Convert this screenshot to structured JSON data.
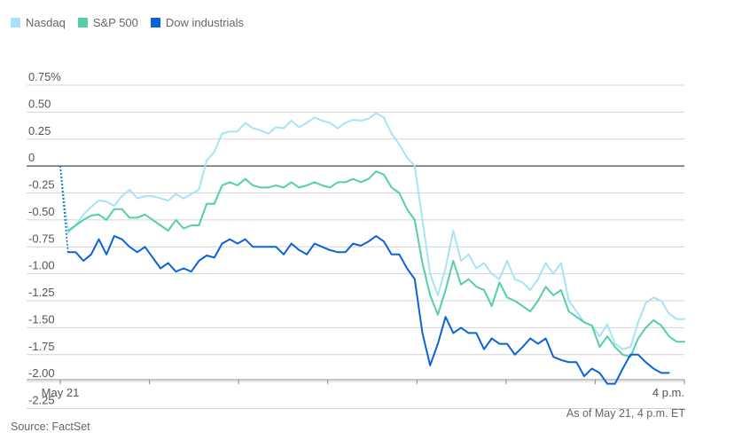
{
  "chart_data": {
    "type": "line",
    "series": [
      {
        "name": "Nasdaq",
        "color": "#a6e3f7",
        "values": [
          0,
          -0.62,
          -0.55,
          -0.45,
          -0.38,
          -0.32,
          -0.33,
          -0.37,
          -0.28,
          -0.22,
          -0.3,
          -0.28,
          -0.28,
          -0.3,
          -0.32,
          -0.26,
          -0.3,
          -0.26,
          -0.22,
          0.05,
          0.13,
          0.3,
          0.32,
          0.32,
          0.4,
          0.35,
          0.33,
          0.3,
          0.36,
          0.35,
          0.42,
          0.36,
          0.4,
          0.45,
          0.42,
          0.4,
          0.35,
          0.4,
          0.43,
          0.42,
          0.44,
          0.49,
          0.45,
          0.3,
          0.2,
          0.08,
          0,
          -0.5,
          -1.0,
          -1.2,
          -0.95,
          -0.6,
          -0.88,
          -0.82,
          -0.95,
          -0.9,
          -1.0,
          -1.05,
          -0.88,
          -1.05,
          -1.08,
          -1.15,
          -1.05,
          -0.9,
          -1.0,
          -0.9,
          -1.25,
          -1.35,
          -1.45,
          -1.48,
          -1.58,
          -1.47,
          -1.65,
          -1.7,
          -1.68,
          -1.45,
          -1.27,
          -1.22,
          -1.25,
          -1.37,
          -1.42,
          -1.42
        ]
      },
      {
        "name": "S&P 500",
        "color": "#54cfa8",
        "values": [
          0,
          -0.6,
          -0.55,
          -0.5,
          -0.46,
          -0.45,
          -0.5,
          -0.4,
          -0.4,
          -0.48,
          -0.48,
          -0.45,
          -0.5,
          -0.55,
          -0.6,
          -0.5,
          -0.58,
          -0.55,
          -0.55,
          -0.35,
          -0.35,
          -0.18,
          -0.15,
          -0.18,
          -0.12,
          -0.18,
          -0.2,
          -0.2,
          -0.18,
          -0.2,
          -0.15,
          -0.2,
          -0.18,
          -0.15,
          -0.18,
          -0.2,
          -0.15,
          -0.15,
          -0.12,
          -0.15,
          -0.12,
          -0.05,
          -0.08,
          -0.2,
          -0.25,
          -0.4,
          -0.5,
          -0.9,
          -1.2,
          -1.38,
          -1.15,
          -0.88,
          -1.1,
          -1.05,
          -1.12,
          -1.15,
          -1.3,
          -1.08,
          -1.22,
          -1.25,
          -1.3,
          -1.35,
          -1.25,
          -1.12,
          -1.2,
          -1.15,
          -1.35,
          -1.4,
          -1.45,
          -1.48,
          -1.68,
          -1.58,
          -1.68,
          -1.75,
          -1.77,
          -1.6,
          -1.5,
          -1.43,
          -1.48,
          -1.58,
          -1.63,
          -1.63
        ]
      },
      {
        "name": "Dow industrials",
        "color": "#0b63d6",
        "values": [
          0,
          -0.8,
          -0.8,
          -0.88,
          -0.82,
          -0.68,
          -0.82,
          -0.65,
          -0.68,
          -0.75,
          -0.8,
          -0.75,
          -0.85,
          -0.95,
          -0.9,
          -0.98,
          -0.95,
          -0.98,
          -0.88,
          -0.83,
          -0.85,
          -0.72,
          -0.68,
          -0.72,
          -0.68,
          -0.75,
          -0.75,
          -0.75,
          -0.75,
          -0.82,
          -0.72,
          -0.78,
          -0.82,
          -0.72,
          -0.75,
          -0.78,
          -0.8,
          -0.8,
          -0.72,
          -0.74,
          -0.7,
          -0.65,
          -0.7,
          -0.82,
          -0.82,
          -0.95,
          -1.05,
          -1.55,
          -1.85,
          -1.65,
          -1.4,
          -1.55,
          -1.5,
          -1.55,
          -1.55,
          -1.7,
          -1.6,
          -1.65,
          -1.65,
          -1.75,
          -1.68,
          -1.6,
          -1.65,
          -1.6,
          -1.77,
          -1.8,
          -1.82,
          -1.82,
          -1.95,
          -1.88,
          -1.92,
          -2.02,
          -2.02,
          -1.88,
          -1.75,
          -1.75,
          -1.82,
          -1.88,
          -1.92,
          -1.92
        ]
      }
    ],
    "ylim": [
      -2.3,
      0.8
    ],
    "yticks": [
      {
        "value": 0.75,
        "label": "0.75%"
      },
      {
        "value": 0.5,
        "label": "0.50"
      },
      {
        "value": 0.25,
        "label": "0.25"
      },
      {
        "value": 0,
        "label": "0"
      },
      {
        "value": -0.25,
        "label": "-0.25"
      },
      {
        "value": -0.5,
        "label": "-0.50"
      },
      {
        "value": -0.75,
        "label": "-0.75"
      },
      {
        "value": -1.0,
        "label": "-1.00"
      },
      {
        "value": -1.25,
        "label": "-1.25"
      },
      {
        "value": -1.5,
        "label": "-1.50"
      },
      {
        "value": -1.75,
        "label": "-1.75"
      },
      {
        "value": -2.0,
        "label": "-2.00"
      },
      {
        "value": -2.25,
        "label": "-2.25"
      }
    ],
    "xtick_labels": {
      "start": "May 21",
      "end": "4 p.m."
    },
    "x_minor_ticks": 6,
    "grid": true,
    "legend_position": "top-left"
  },
  "legend": [
    {
      "label": "Nasdaq",
      "color": "#a6e3f7"
    },
    {
      "label": "S&P 500",
      "color": "#54cfa8"
    },
    {
      "label": "Dow industrials",
      "color": "#0b63d6"
    }
  ],
  "footer": {
    "source": "Source: FactSet",
    "as_of": "As of May 21, 4 p.m. ET"
  }
}
